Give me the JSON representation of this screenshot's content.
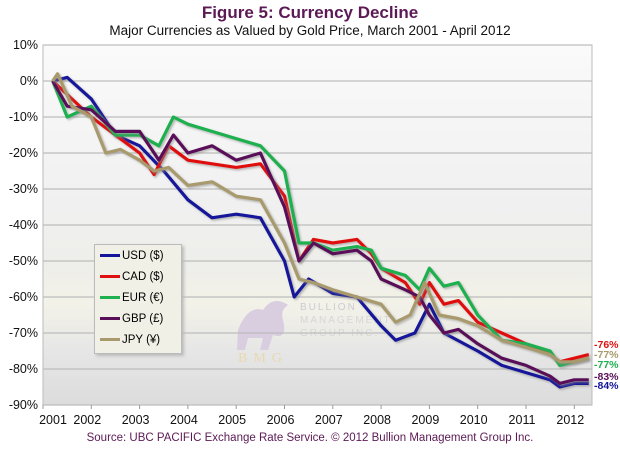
{
  "chart_data": {
    "type": "line",
    "title": "Figure 5:  Currency Decline",
    "subtitle": "Major Currencies as Valued by Gold Price, March 2001 - April 2012",
    "source": "Source:  UBC PACIFIC Exchange Rate Service. © 2012 Bullion Management Group Inc.",
    "xlabel": "",
    "ylabel": "",
    "xlim": [
      2001,
      2012.35
    ],
    "ylim": [
      -90,
      10
    ],
    "x_ticks": [
      "2001",
      "2002",
      "2003",
      "2004",
      "2005",
      "2006",
      "2007",
      "2008",
      "2009",
      "2010",
      "2011",
      "2012"
    ],
    "y_ticks": [
      "10%",
      "0%",
      "-10%",
      "-20%",
      "-30%",
      "-40%",
      "-50%",
      "-60%",
      "-70%",
      "-80%",
      "-90%"
    ],
    "grid": true,
    "legend_position": "lower-left",
    "watermark": "BULLION MANAGEMENT GROUP INC. BMG",
    "series": [
      {
        "name": "USD ($)",
        "color": "#14149a",
        "end_label": "-84%",
        "x": [
          2001.2,
          2001.5,
          2002,
          2002.5,
          2003,
          2003.5,
          2004,
          2004.5,
          2005,
          2005.5,
          2006,
          2006.2,
          2006.5,
          2007,
          2007.5,
          2008,
          2008.3,
          2008.7,
          2009,
          2009.3,
          2010,
          2010.5,
          2011,
          2011.5,
          2011.7,
          2012,
          2012.3
        ],
        "y": [
          0,
          1,
          -5,
          -15,
          -18,
          -25,
          -33,
          -38,
          -37,
          -38,
          -50,
          -60,
          -55,
          -59,
          -60,
          -68,
          -72,
          -70,
          -62,
          -70,
          -75,
          -79,
          -81,
          -83,
          -85,
          -84,
          -84
        ]
      },
      {
        "name": "CAD ($)",
        "color": "#e01010",
        "end_label": "-76%",
        "x": [
          2001.2,
          2002,
          2002.5,
          2003,
          2003.3,
          2003.6,
          2004,
          2004.5,
          2005,
          2005.5,
          2006,
          2006.3,
          2006.6,
          2007,
          2007.5,
          2007.8,
          2008,
          2008.5,
          2008.8,
          2009,
          2009.3,
          2009.6,
          2010,
          2010.5,
          2011,
          2011.5,
          2011.7,
          2012,
          2012.3
        ],
        "y": [
          0,
          -10,
          -15,
          -20,
          -26,
          -18,
          -22,
          -23,
          -24,
          -23,
          -32,
          -50,
          -44,
          -45,
          -44,
          -48,
          -52,
          -56,
          -62,
          -56,
          -62,
          -61,
          -67,
          -70,
          -73,
          -76,
          -78,
          -77,
          -76
        ]
      },
      {
        "name": "EUR (€)",
        "color": "#1fb050",
        "end_label": "-77%",
        "x": [
          2001.2,
          2001.5,
          2002,
          2002.5,
          2003,
          2003.4,
          2003.7,
          2004,
          2004.5,
          2005,
          2005.5,
          2006,
          2006.3,
          2006.6,
          2007,
          2007.5,
          2007.8,
          2008,
          2008.5,
          2008.8,
          2009,
          2009.3,
          2009.6,
          2010,
          2010.5,
          2011,
          2011.5,
          2011.7,
          2012,
          2012.3
        ],
        "y": [
          0,
          -10,
          -7,
          -15,
          -15,
          -18,
          -10,
          -12,
          -14,
          -16,
          -18,
          -25,
          -45,
          -45,
          -47,
          -46,
          -47,
          -52,
          -54,
          -58,
          -52,
          -57,
          -56,
          -65,
          -72,
          -73,
          -75,
          -79,
          -78,
          -77
        ]
      },
      {
        "name": "GBP (£)",
        "color": "#5a1058",
        "end_label": "-83%",
        "x": [
          2001.2,
          2001.5,
          2002,
          2002.5,
          2003,
          2003.4,
          2003.7,
          2004,
          2004.5,
          2005,
          2005.5,
          2006,
          2006.3,
          2006.6,
          2007,
          2007.5,
          2007.8,
          2008,
          2008.5,
          2008.8,
          2009,
          2009.3,
          2009.6,
          2010,
          2010.5,
          2011,
          2011.5,
          2011.7,
          2012,
          2012.3
        ],
        "y": [
          0,
          -7,
          -8,
          -14,
          -14,
          -22,
          -15,
          -20,
          -18,
          -22,
          -20,
          -35,
          -50,
          -45,
          -48,
          -47,
          -50,
          -55,
          -58,
          -60,
          -65,
          -70,
          -69,
          -73,
          -77,
          -79,
          -82,
          -84,
          -83,
          -83
        ]
      },
      {
        "name": "JPY (¥)",
        "color": "#a89a6c",
        "end_label": "-77%",
        "x": [
          2001.2,
          2001.3,
          2001.6,
          2002,
          2002.3,
          2002.6,
          2003,
          2003.3,
          2003.6,
          2004,
          2004.5,
          2005,
          2005.5,
          2006,
          2006.3,
          2006.6,
          2007,
          2007.5,
          2008,
          2008.3,
          2008.6,
          2008.9,
          2009.2,
          2009.6,
          2010,
          2010.5,
          2011,
          2011.5,
          2011.7,
          2012,
          2012.3
        ],
        "y": [
          0,
          2,
          -7,
          -10,
          -20,
          -19,
          -22,
          -25,
          -24,
          -29,
          -28,
          -32,
          -33,
          -45,
          -55,
          -56,
          -58,
          -60,
          -62,
          -67,
          -65,
          -56,
          -65,
          -66,
          -68,
          -72,
          -74,
          -76,
          -78,
          -78,
          -77
        ]
      }
    ]
  }
}
